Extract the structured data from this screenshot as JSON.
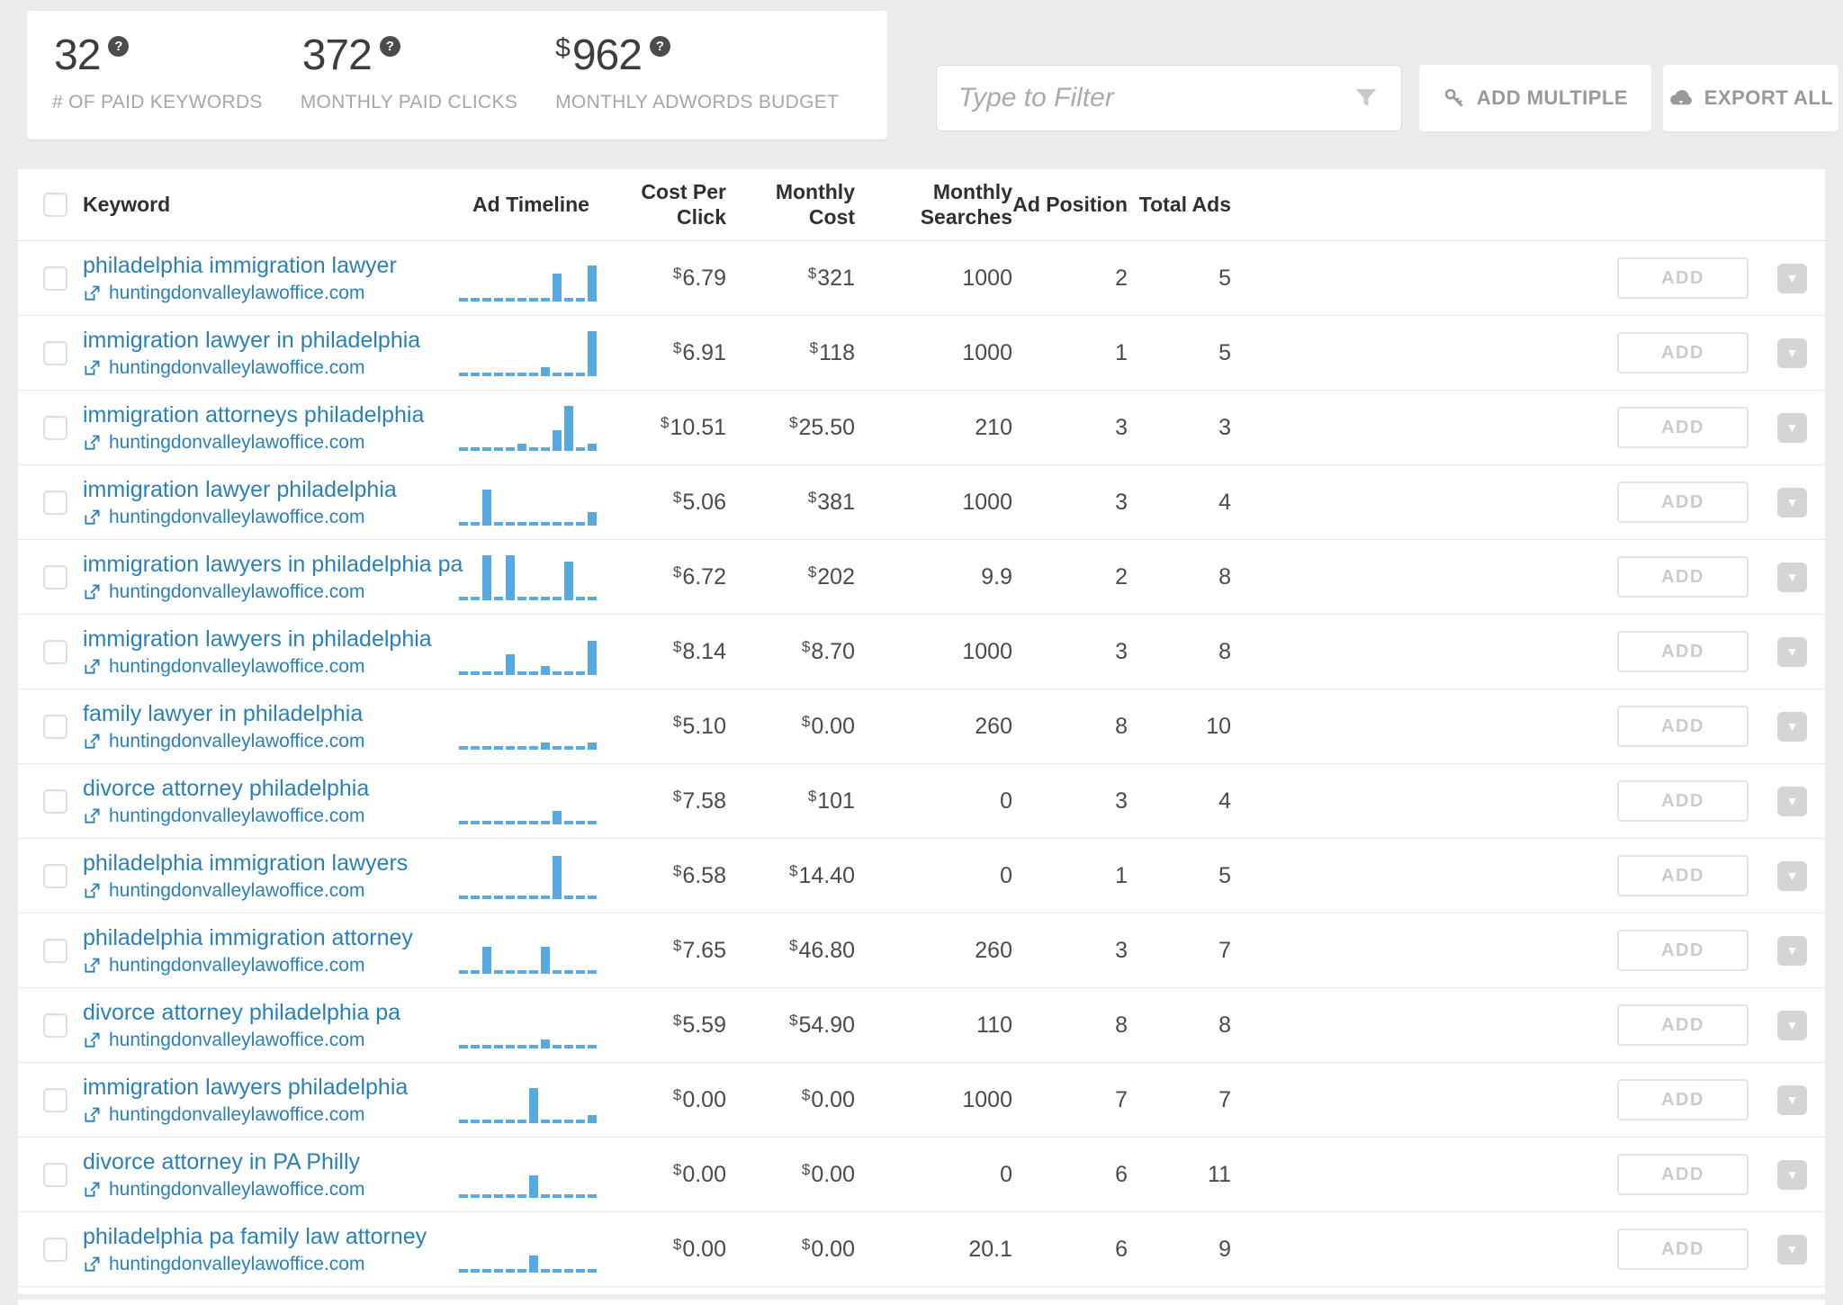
{
  "stats": [
    {
      "currency": "",
      "value": "32",
      "label": "# OF PAID KEYWORDS"
    },
    {
      "currency": "",
      "value": "372",
      "label": "MONTHLY PAID CLICKS"
    },
    {
      "currency": "$",
      "value": "962",
      "label": "MONTHLY ADWORDS BUDGET"
    }
  ],
  "glyphs": {
    "help": "?",
    "caret": "▼"
  },
  "toolbar": {
    "filter_placeholder": "Type to Filter",
    "add_multiple_label": "ADD MULTIPLE",
    "export_all_label": "EXPORT ALL"
  },
  "table": {
    "headers": {
      "keyword": "Keyword",
      "ad_timeline": "Ad Timeline",
      "cost_per_click": "Cost Per Click",
      "monthly_cost": "Monthly Cost",
      "monthly_searches": "Monthly Searches",
      "ad_position": "Ad Position",
      "total_ads": "Total Ads"
    },
    "row_action_label": "ADD",
    "rows": [
      {
        "keyword": "philadelphia immigration lawyer",
        "domain": "huntingdonvalleylawoffice.com",
        "timeline": [
          0,
          0,
          0,
          0,
          0,
          0,
          0,
          0,
          0.62,
          0,
          0,
          0.8
        ],
        "cpc": {
          "cur": "$",
          "val": "6.79"
        },
        "monthly_cost": {
          "cur": "$",
          "val": "321"
        },
        "monthly_searches": "1000",
        "ad_position": "2",
        "total_ads": "5"
      },
      {
        "keyword": "immigration lawyer in philadelphia",
        "domain": "huntingdonvalleylawoffice.com",
        "timeline": [
          0,
          0,
          0,
          0,
          0,
          0,
          0,
          0.2,
          0,
          0,
          0,
          1
        ],
        "cpc": {
          "cur": "$",
          "val": "6.91"
        },
        "monthly_cost": {
          "cur": "$",
          "val": "118"
        },
        "monthly_searches": "1000",
        "ad_position": "1",
        "total_ads": "5"
      },
      {
        "keyword": "immigration attorneys philadelphia",
        "domain": "huntingdonvalleylawoffice.com",
        "timeline": [
          0,
          0,
          0,
          0,
          0,
          0.16,
          0,
          0,
          0.45,
          1,
          0,
          0.16
        ],
        "cpc": {
          "cur": "$",
          "val": "10.51"
        },
        "monthly_cost": {
          "cur": "$",
          "val": "25.50"
        },
        "monthly_searches": "210",
        "ad_position": "3",
        "total_ads": "3"
      },
      {
        "keyword": "immigration lawyer philadelphia",
        "domain": "huntingdonvalleylawoffice.com",
        "timeline": [
          0,
          0,
          0.8,
          0,
          0,
          0,
          0,
          0,
          0,
          0,
          0,
          0.3
        ],
        "cpc": {
          "cur": "$",
          "val": "5.06"
        },
        "monthly_cost": {
          "cur": "$",
          "val": "381"
        },
        "monthly_searches": "1000",
        "ad_position": "3",
        "total_ads": "4"
      },
      {
        "keyword": "immigration lawyers in philadelphia pa",
        "domain": "huntingdonvalleylawoffice.com",
        "timeline": [
          0,
          0,
          1,
          0,
          1,
          0,
          0,
          0,
          0,
          0.85,
          0,
          0
        ],
        "cpc": {
          "cur": "$",
          "val": "6.72"
        },
        "monthly_cost": {
          "cur": "$",
          "val": "202"
        },
        "monthly_searches": "9.9",
        "ad_position": "2",
        "total_ads": "8"
      },
      {
        "keyword": "immigration lawyers in philadelphia",
        "domain": "huntingdonvalleylawoffice.com",
        "timeline": [
          0,
          0,
          0,
          0,
          0.45,
          0,
          0,
          0.2,
          0,
          0,
          0,
          0.75
        ],
        "cpc": {
          "cur": "$",
          "val": "8.14"
        },
        "monthly_cost": {
          "cur": "$",
          "val": "8.70"
        },
        "monthly_searches": "1000",
        "ad_position": "3",
        "total_ads": "8"
      },
      {
        "keyword": "family lawyer in philadelphia",
        "domain": "huntingdonvalleylawoffice.com",
        "timeline": [
          0,
          0,
          0,
          0,
          0,
          0,
          0,
          0.15,
          0,
          0,
          0,
          0.15
        ],
        "cpc": {
          "cur": "$",
          "val": "5.10"
        },
        "monthly_cost": {
          "cur": "$",
          "val": "0.00"
        },
        "monthly_searches": "260",
        "ad_position": "8",
        "total_ads": "10"
      },
      {
        "keyword": "divorce attorney philadelphia",
        "domain": "huntingdonvalleylawoffice.com",
        "timeline": [
          0,
          0,
          0,
          0,
          0,
          0,
          0,
          0,
          0.3,
          0,
          0,
          0
        ],
        "cpc": {
          "cur": "$",
          "val": "7.58"
        },
        "monthly_cost": {
          "cur": "$",
          "val": "101"
        },
        "monthly_searches": "0",
        "ad_position": "3",
        "total_ads": "4"
      },
      {
        "keyword": "philadelphia immigration lawyers",
        "domain": "huntingdonvalleylawoffice.com",
        "timeline": [
          0,
          0,
          0,
          0,
          0,
          0,
          0,
          0,
          0.95,
          0,
          0,
          0
        ],
        "cpc": {
          "cur": "$",
          "val": "6.58"
        },
        "monthly_cost": {
          "cur": "$",
          "val": "14.40"
        },
        "monthly_searches": "0",
        "ad_position": "1",
        "total_ads": "5"
      },
      {
        "keyword": "philadelphia immigration attorney",
        "domain": "huntingdonvalleylawoffice.com",
        "timeline": [
          0,
          0,
          0.6,
          0,
          0,
          0,
          0,
          0.6,
          0,
          0,
          0,
          0
        ],
        "cpc": {
          "cur": "$",
          "val": "7.65"
        },
        "monthly_cost": {
          "cur": "$",
          "val": "46.80"
        },
        "monthly_searches": "260",
        "ad_position": "3",
        "total_ads": "7"
      },
      {
        "keyword": "divorce attorney philadelphia pa",
        "domain": "huntingdonvalleylawoffice.com",
        "timeline": [
          0,
          0,
          0,
          0,
          0,
          0,
          0,
          0.2,
          0,
          0,
          0,
          0
        ],
        "cpc": {
          "cur": "$",
          "val": "5.59"
        },
        "monthly_cost": {
          "cur": "$",
          "val": "54.90"
        },
        "monthly_searches": "110",
        "ad_position": "8",
        "total_ads": "8"
      },
      {
        "keyword": "immigration lawyers philadelphia",
        "domain": "huntingdonvalleylawoffice.com",
        "timeline": [
          0,
          0,
          0,
          0,
          0,
          0,
          0.78,
          0,
          0,
          0,
          0,
          0.17
        ],
        "cpc": {
          "cur": "$",
          "val": "0.00"
        },
        "monthly_cost": {
          "cur": "$",
          "val": "0.00"
        },
        "monthly_searches": "1000",
        "ad_position": "7",
        "total_ads": "7"
      },
      {
        "keyword": "divorce attorney in PA Philly",
        "domain": "huntingdonvalleylawoffice.com",
        "timeline": [
          0,
          0,
          0,
          0,
          0,
          0,
          0.5,
          0,
          0,
          0,
          0,
          0
        ],
        "cpc": {
          "cur": "$",
          "val": "0.00"
        },
        "monthly_cost": {
          "cur": "$",
          "val": "0.00"
        },
        "monthly_searches": "0",
        "ad_position": "6",
        "total_ads": "11"
      },
      {
        "keyword": "philadelphia pa family law attorney",
        "domain": "huntingdonvalleylawoffice.com",
        "timeline": [
          0,
          0,
          0,
          0,
          0,
          0,
          0.38,
          0,
          0,
          0,
          0,
          0
        ],
        "cpc": {
          "cur": "$",
          "val": "0.00"
        },
        "monthly_cost": {
          "cur": "$",
          "val": "0.00"
        },
        "monthly_searches": "20.1",
        "ad_position": "6",
        "total_ads": "9"
      }
    ]
  }
}
